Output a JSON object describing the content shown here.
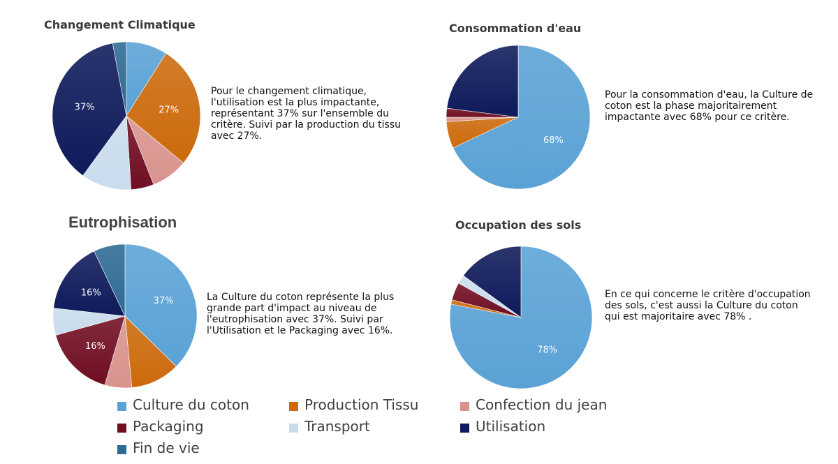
{
  "colors": {
    "culture": "#5aa2d6",
    "production": "#cc6a0c",
    "confection": "#d9938e",
    "packaging": "#700e22",
    "transport": "#c9dced",
    "utilisation": "#0e1a5a",
    "findevie": "#2e6a94"
  },
  "panels": [
    {
      "title": "Changement Climatique",
      "description": "Pour le changement climatique, l'utilisation est la plus impactante, représentant 37% sur l'ensemble du critère. Suivi par la production du tissu avec 27%."
    },
    {
      "title": "Consommation d'eau",
      "description": "Pour la consommation d'eau, la Culture de coton est la phase majoritairement impactante avec 68% pour ce critère."
    },
    {
      "title": "Eutrophisation",
      "description": "La Culture du coton représente la plus grande part d'impact au niveau de l'eutrophisation avec 37%. Suivi par l'Utilisation et le Packaging avec 16%."
    },
    {
      "title": "Occupation des sols",
      "description": "En ce qui concerne le critère d'occupation des sols, c'est aussi la Culture du coton qui est majoritaire avec 78% ."
    }
  ],
  "legend": [
    {
      "label": "Culture du coton",
      "color": "#5aa2d6"
    },
    {
      "label": "Production Tissu",
      "color": "#cc6a0c"
    },
    {
      "label": "Confection du jean",
      "color": "#d9938e"
    },
    {
      "label": "Packaging",
      "color": "#700e22"
    },
    {
      "label": "Transport",
      "color": "#c9dced"
    },
    {
      "label": "Utilisation",
      "color": "#0e1a5a"
    },
    {
      "label": "Fin de vie",
      "color": "#2e6a94"
    }
  ],
  "chart_data": [
    {
      "type": "pie",
      "title": "Changement Climatique",
      "categories": [
        "Culture du coton",
        "Production Tissu",
        "Confection du jean",
        "Packaging",
        "Transport",
        "Utilisation",
        "Fin de vie"
      ],
      "values": [
        9,
        27,
        8,
        5,
        11,
        37,
        3
      ],
      "data_labels": [
        "",
        "27%",
        "",
        "",
        "",
        "37%",
        ""
      ]
    },
    {
      "type": "pie",
      "title": "Consommation d'eau",
      "categories": [
        "Culture du coton",
        "Production Tissu",
        "Confection du jean",
        "Packaging",
        "Transport",
        "Utilisation",
        "Fin de vie"
      ],
      "values": [
        68,
        6,
        1,
        2,
        0,
        23,
        0
      ],
      "data_labels": [
        "68%",
        "",
        "",
        "",
        "",
        "",
        ""
      ]
    },
    {
      "type": "pie",
      "title": "Eutrophisation",
      "categories": [
        "Culture du coton",
        "Production Tissu",
        "Confection du jean",
        "Packaging",
        "Transport",
        "Utilisation",
        "Fin de vie"
      ],
      "values": [
        37,
        11,
        6,
        16,
        6,
        16,
        7
      ],
      "data_labels": [
        "37%",
        "",
        "",
        "16%",
        "",
        "16%",
        ""
      ]
    },
    {
      "type": "pie",
      "title": "Occupation des sols",
      "categories": [
        "Culture du coton",
        "Production Tissu",
        "Confection du jean",
        "Packaging",
        "Transport",
        "Utilisation",
        "Fin de vie"
      ],
      "values": [
        78,
        1,
        0,
        4,
        2,
        15,
        0
      ],
      "data_labels": [
        "78%",
        "",
        "",
        "",
        "",
        "",
        ""
      ]
    }
  ]
}
